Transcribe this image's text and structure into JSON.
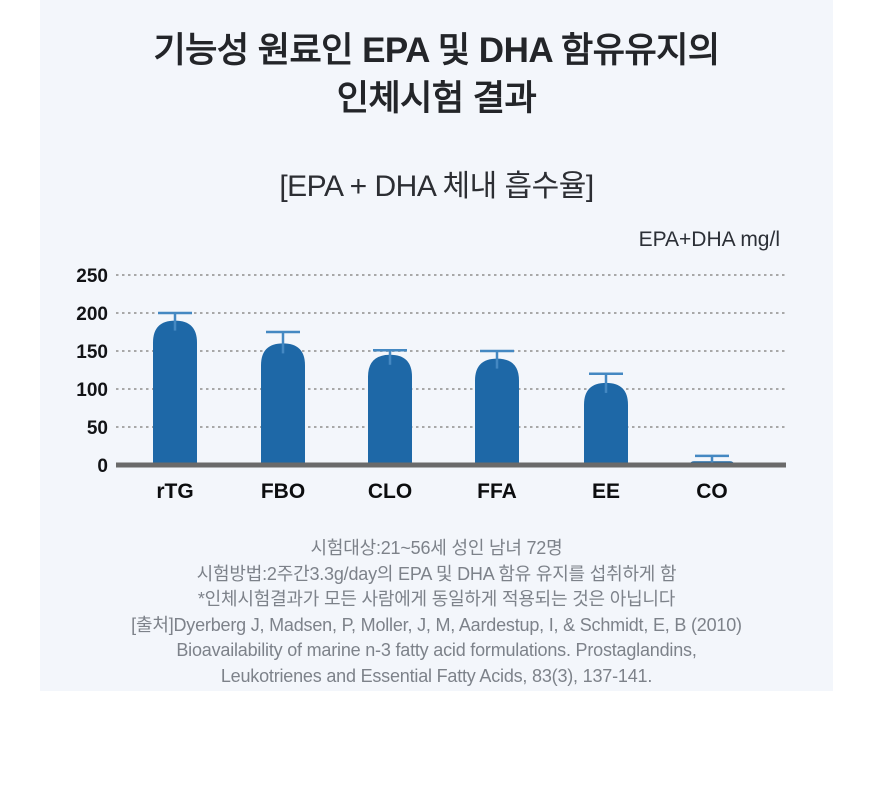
{
  "page": {
    "title_line1": "기능성 원료인 EPA 및 DHA 함유유지의",
    "title_line2": "인체시험 결과",
    "subtitle": "[EPA + DHA 체내 흡수율]",
    "unit_label": "EPA+DHA mg/l"
  },
  "footnotes": {
    "lines": [
      "시험대상:21~56세 성인 남녀 72명",
      "시험방법:2주간3.3g/day의 EPA 및 DHA 함유 유지를 섭취하게 함",
      "*인체시험결과가 모든 사람에게 동일하게 적용되는 것은 아닙니다",
      "[출처]Dyerberg J, Madsen, P, Moller, J, M, Aardestup, I, & Schmidt, E, B (2010)",
      "Bioavailability of marine n-3 fatty acid formulations. Prostaglandins,",
      "Leukotrienes and Essential Fatty Acids, 83(3), 137-141."
    ]
  },
  "chart_data": {
    "type": "bar",
    "title": "[EPA + DHA 체내 흡수율]",
    "xlabel": "",
    "ylabel": "EPA+DHA mg/l",
    "categories": [
      "rTG",
      "FBO",
      "CLO",
      "FFA",
      "EE",
      "CO"
    ],
    "values": [
      190,
      160,
      145,
      140,
      108,
      5
    ],
    "error_upper": [
      200,
      175,
      151,
      150,
      120,
      12
    ],
    "yticks": [
      0,
      50,
      100,
      150,
      200,
      250
    ],
    "ylim": [
      0,
      250
    ],
    "grid": "dotted-horizontal",
    "legend": "none",
    "colors": {
      "bar": "#1e68a7",
      "error_bar": "#4488c2",
      "axis_line": "#6a6a6a",
      "gridline": "#a8a8a8",
      "panel_bg": "#f3f6fb"
    }
  }
}
